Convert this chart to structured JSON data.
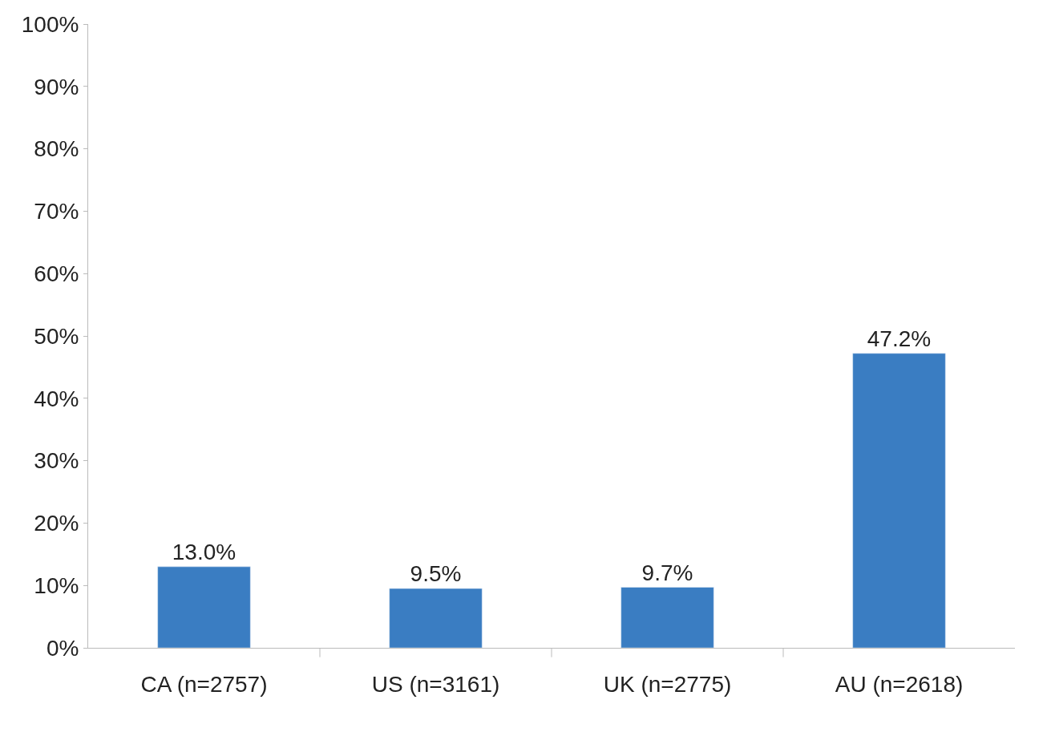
{
  "chart_data": {
    "type": "bar",
    "categories": [
      "CA (n=2757)",
      "US (n=3161)",
      "UK (n=2775)",
      "AU (n=2618)"
    ],
    "values": [
      13.0,
      9.5,
      9.7,
      47.2
    ],
    "value_labels": [
      "13.0%",
      "9.5%",
      "9.7%",
      "47.2%"
    ],
    "color": "#3a7dc2",
    "ylim": [
      0,
      100
    ],
    "yticks": [
      {
        "value": 0,
        "label": "0%"
      },
      {
        "value": 10,
        "label": "10%"
      },
      {
        "value": 20,
        "label": "20%"
      },
      {
        "value": 30,
        "label": "30%"
      },
      {
        "value": 40,
        "label": "40%"
      },
      {
        "value": 50,
        "label": "50%"
      },
      {
        "value": 60,
        "label": "60%"
      },
      {
        "value": 70,
        "label": "70%"
      },
      {
        "value": 80,
        "label": "80%"
      },
      {
        "value": 90,
        "label": "90%"
      },
      {
        "value": 100,
        "label": "100%"
      }
    ]
  }
}
